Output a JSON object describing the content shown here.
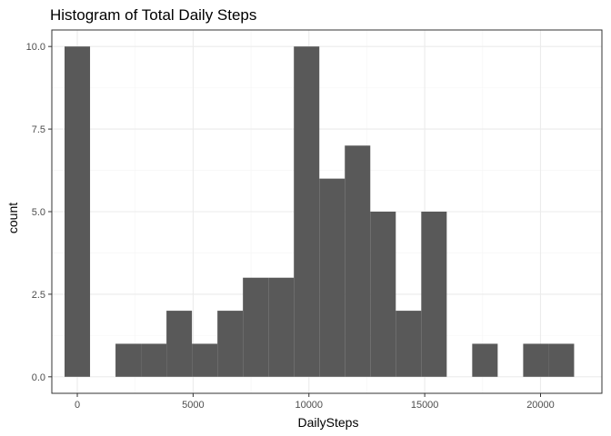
{
  "chart_data": {
    "type": "bar",
    "title": "Histogram of Total Daily Steps",
    "xlabel": "DailySteps",
    "ylabel": "count",
    "binwidth": 1100,
    "bins": [
      {
        "x": 0,
        "count": 10
      },
      {
        "x": 1100,
        "count": 0
      },
      {
        "x": 2200,
        "count": 1
      },
      {
        "x": 3300,
        "count": 1
      },
      {
        "x": 4400,
        "count": 2
      },
      {
        "x": 5500,
        "count": 1
      },
      {
        "x": 6600,
        "count": 2
      },
      {
        "x": 7700,
        "count": 3
      },
      {
        "x": 8800,
        "count": 3
      },
      {
        "x": 9900,
        "count": 10
      },
      {
        "x": 11000,
        "count": 6
      },
      {
        "x": 12100,
        "count": 7
      },
      {
        "x": 13200,
        "count": 5
      },
      {
        "x": 14300,
        "count": 2
      },
      {
        "x": 15400,
        "count": 5
      },
      {
        "x": 16500,
        "count": 0
      },
      {
        "x": 17600,
        "count": 1
      },
      {
        "x": 18700,
        "count": 0
      },
      {
        "x": 19800,
        "count": 1
      },
      {
        "x": 20900,
        "count": 1
      }
    ],
    "xticks": [
      0,
      5000,
      10000,
      15000,
      20000
    ],
    "xtick_labels": [
      "0",
      "5000",
      "10000",
      "15000",
      "20000"
    ],
    "yticks": [
      0,
      2.5,
      5,
      7.5,
      10
    ],
    "ytick_labels": [
      "0.0",
      "2.5",
      "5.0",
      "7.5",
      "10.0"
    ],
    "xlim": [
      -1100,
      22650
    ],
    "ylim": [
      -0.5,
      10.5
    ],
    "grid": true,
    "colors": {
      "bar": "#595959",
      "grid_major": "#ebebeb",
      "grid_minor": "#f5f5f5",
      "panel_border": "#333333"
    }
  }
}
